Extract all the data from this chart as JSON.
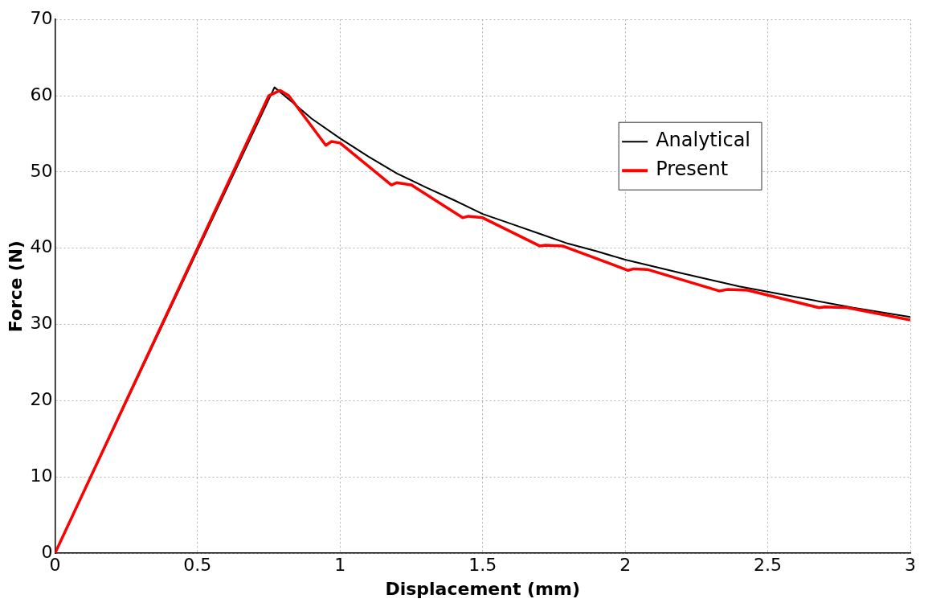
{
  "chart_data": {
    "type": "line",
    "xlabel": "Displacement (mm)",
    "ylabel": "Force (N)",
    "xlim": [
      0,
      3
    ],
    "xticks": [
      0,
      0.5,
      1,
      1.5,
      2,
      2.5,
      3
    ],
    "ylim": [
      0,
      70
    ],
    "yticks": [
      0,
      10,
      20,
      30,
      40,
      50,
      60,
      70
    ],
    "grid": true,
    "legend": "top right",
    "marker": "none",
    "line_style": "solid",
    "series": [
      {
        "name": "Analytical",
        "color": "#000000",
        "x": [
          0,
          0.77,
          0.85,
          0.9,
          1.0,
          1.1,
          1.2,
          1.3,
          1.4,
          1.5,
          1.6,
          1.7,
          1.8,
          1.9,
          2.0,
          2.2,
          2.4,
          2.6,
          2.8,
          3.0
        ],
        "values": [
          0,
          61.1,
          58.6,
          57.0,
          54.4,
          52.0,
          49.8,
          48.0,
          46.3,
          44.5,
          43.2,
          41.9,
          40.6,
          39.6,
          38.5,
          36.7,
          35.0,
          33.6,
          32.2,
          31.0
        ]
      },
      {
        "name": "Present",
        "color": "#ff0000",
        "x": [
          0,
          0.75,
          0.79,
          0.82,
          0.95,
          0.97,
          1.0,
          1.18,
          1.2,
          1.25,
          1.43,
          1.45,
          1.5,
          1.7,
          1.72,
          1.78,
          2.01,
          2.03,
          2.08,
          2.33,
          2.36,
          2.43,
          2.68,
          2.7,
          2.78,
          3.0
        ],
        "values": [
          0,
          60.0,
          60.7,
          60.0,
          53.5,
          54.0,
          53.8,
          48.3,
          48.6,
          48.3,
          44.0,
          44.2,
          44.0,
          40.3,
          40.4,
          40.3,
          37.1,
          37.3,
          37.2,
          34.4,
          34.6,
          34.5,
          32.2,
          32.3,
          32.2,
          30.6
        ]
      }
    ]
  }
}
